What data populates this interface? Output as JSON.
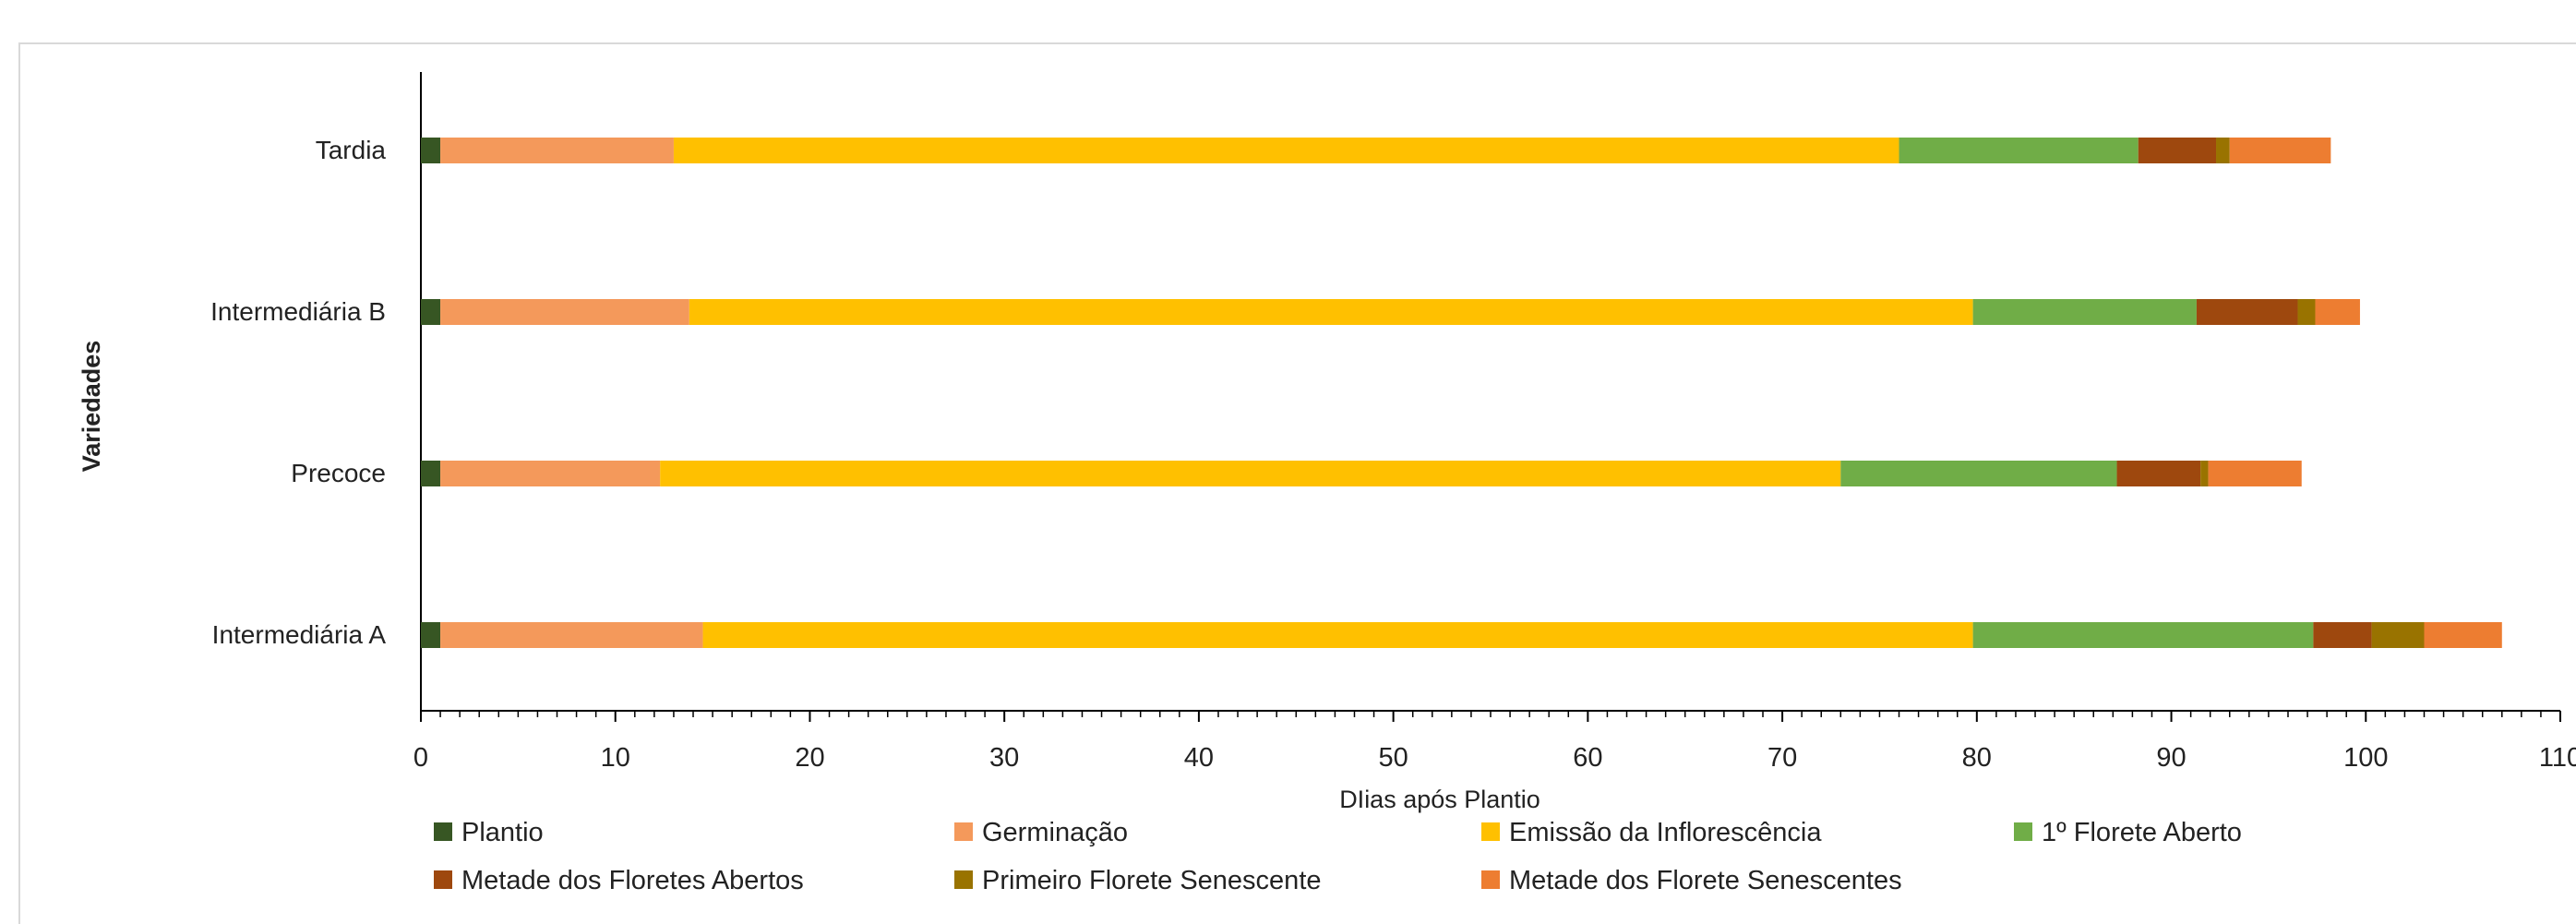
{
  "chart_data": {
    "type": "bar",
    "orientation": "horizontal",
    "stacked": true,
    "categories": [
      "Intermediária A",
      "Precoce",
      "Intermediária B",
      "Tardia"
    ],
    "series": [
      {
        "name": "Plantio",
        "color": "#375623",
        "values": [
          1,
          1,
          1,
          1
        ]
      },
      {
        "name": "Germinação",
        "color": "#f4995b",
        "values": [
          13.5,
          11.3,
          12.8,
          12
        ]
      },
      {
        "name": "Emissão da Inflorescência",
        "color": "#ffc000",
        "values": [
          65.3,
          60.7,
          66,
          63
        ]
      },
      {
        "name": "1º Florete Aberto",
        "color": "#70ad47",
        "values": [
          17.5,
          14.2,
          11.5,
          12.3
        ]
      },
      {
        "name": "Metade dos Floretes Abertos",
        "color": "#9e480e",
        "values": [
          3,
          4.3,
          5.2,
          4
        ]
      },
      {
        "name": "Primeiro Florete Senescente",
        "color": "#997300",
        "values": [
          2.7,
          0.4,
          0.9,
          0.7
        ]
      },
      {
        "name": "Metade dos Florete Senescentes",
        "color": "#ed7d31",
        "values": [
          4,
          4.8,
          2.3,
          5.2
        ]
      }
    ],
    "xlim": [
      0,
      110
    ],
    "xticks": [
      "0",
      "10",
      "20",
      "30",
      "40",
      "50",
      "60",
      "70",
      "80",
      "90",
      "100",
      "110"
    ],
    "xlabel": "DIias após Plantio",
    "ylabel": "Variedades",
    "legend_position": "bottom",
    "grid": false
  }
}
